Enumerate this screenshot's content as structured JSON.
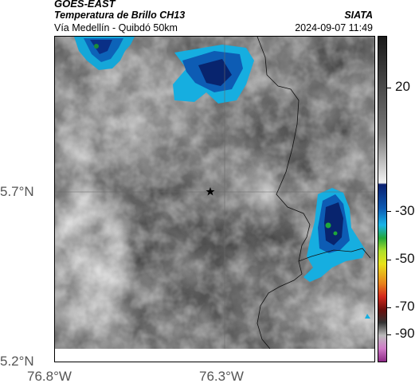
{
  "header": {
    "title": "GOES-EAST",
    "product": "Temperatura de Brillo CH13",
    "region": "Vía Medellín - Quibdó 50km",
    "organization": "SIATA",
    "timestamp": "2024-09-07 11:49"
  },
  "map": {
    "lat_labels": [
      "5.7°N",
      "5.2°N"
    ],
    "lon_labels": [
      "76.8°W",
      "76.3°W"
    ],
    "marker": "star-marker",
    "gridlines": true
  },
  "colorbar": {
    "tick_labels": [
      "20",
      "-30",
      "-50",
      "-70",
      "-90"
    ],
    "colors": {
      "warm_gray_dark": "#2a2a2a",
      "cloud_cyan": "#18b4e8",
      "cloud_blue": "#0a3f9e",
      "cloud_navy": "#071a63",
      "green": "#22a83a",
      "yellow": "#e8e21a",
      "red": "#d4281b",
      "magenta": "#c23fb0"
    }
  }
}
